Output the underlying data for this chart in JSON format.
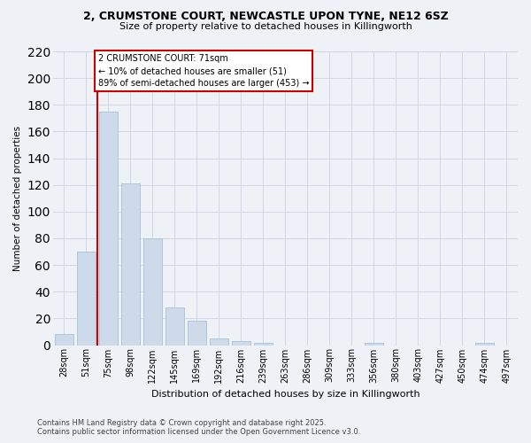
{
  "title_line1": "2, CRUMSTONE COURT, NEWCASTLE UPON TYNE, NE12 6SZ",
  "title_line2": "Size of property relative to detached houses in Killingworth",
  "xlabel": "Distribution of detached houses by size in Killingworth",
  "ylabel": "Number of detached properties",
  "categories": [
    "28sqm",
    "51sqm",
    "75sqm",
    "98sqm",
    "122sqm",
    "145sqm",
    "169sqm",
    "192sqm",
    "216sqm",
    "239sqm",
    "263sqm",
    "286sqm",
    "309sqm",
    "333sqm",
    "356sqm",
    "380sqm",
    "403sqm",
    "427sqm",
    "450sqm",
    "474sqm",
    "497sqm"
  ],
  "values": [
    8,
    70,
    175,
    121,
    80,
    28,
    18,
    5,
    3,
    2,
    0,
    0,
    0,
    0,
    2,
    0,
    0,
    0,
    0,
    2,
    0
  ],
  "bar_color": "#ccdaea",
  "bar_edge_color": "#a8c0d6",
  "subject_line_color": "#cc0000",
  "annotation_text": "2 CRUMSTONE COURT: 71sqm\n← 10% of detached houses are smaller (51)\n89% of semi-detached houses are larger (453) →",
  "annotation_box_color": "#ffffff",
  "annotation_box_edge": "#cc0000",
  "ylim": [
    0,
    220
  ],
  "yticks": [
    0,
    20,
    40,
    60,
    80,
    100,
    120,
    140,
    160,
    180,
    200,
    220
  ],
  "footer_line1": "Contains HM Land Registry data © Crown copyright and database right 2025.",
  "footer_line2": "Contains public sector information licensed under the Open Government Licence v3.0.",
  "background_color": "#eef2f7",
  "plot_background": "#eef2f7",
  "grid_color": "#d0d8e8"
}
